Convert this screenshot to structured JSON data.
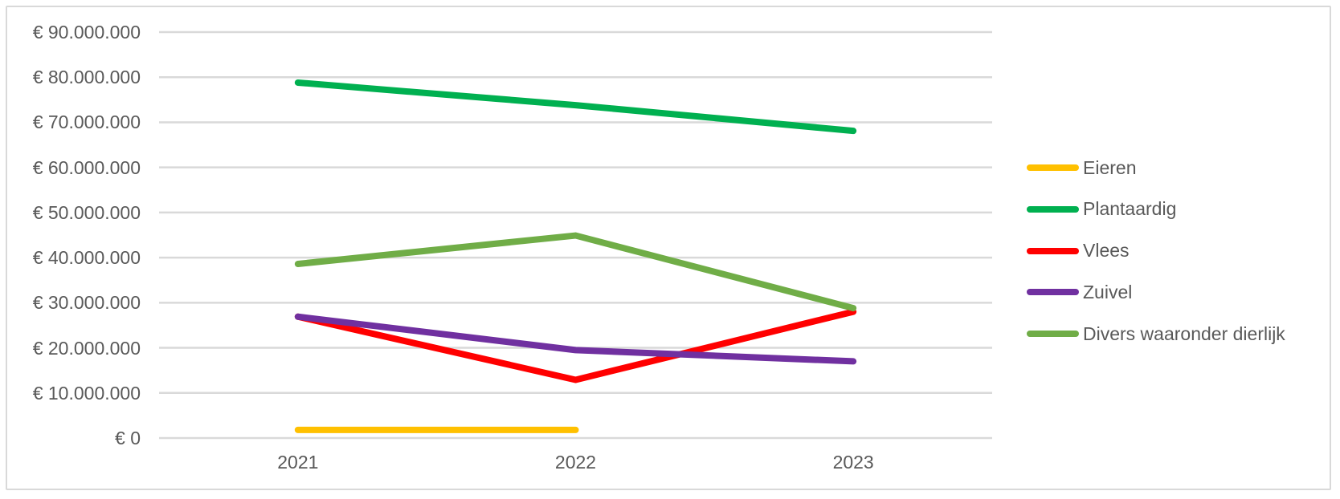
{
  "chart_data": {
    "type": "line",
    "title": "",
    "xlabel": "",
    "ylabel": "",
    "categories": [
      "2021",
      "2022",
      "2023"
    ],
    "series": [
      {
        "name": "Eieren",
        "color": "#FFC000",
        "values": [
          1800000,
          1800000,
          null
        ]
      },
      {
        "name": "Plantaardig",
        "color": "#00B050",
        "values": [
          78800000,
          73800000,
          68100000
        ]
      },
      {
        "name": "Vlees",
        "color": "#FF0000",
        "values": [
          26900000,
          12900000,
          28000000
        ]
      },
      {
        "name": "Zuivel",
        "color": "#7030A0",
        "values": [
          26900000,
          19500000,
          17000000
        ]
      },
      {
        "name": "Divers waaronder dierlijk",
        "color": "#70AD47",
        "values": [
          38600000,
          44900000,
          28800000
        ]
      }
    ],
    "y_axis": {
      "min": 0,
      "max": 90000000,
      "step": 10000000,
      "tick_labels": [
        "€ 0",
        "€ 10.000.000",
        "€ 20.000.000",
        "€ 30.000.000",
        "€ 40.000.000",
        "€ 50.000.000",
        "€ 60.000.000",
        "€ 70.000.000",
        "€ 80.000.000",
        "€ 90.000.000"
      ]
    },
    "legend_position": "right",
    "gridlines": "horizontal",
    "colors": {
      "gridline": "#D9D9D9",
      "axis_text": "#595959",
      "frame_border": "#D9D9D9",
      "background": "#FFFFFF"
    }
  }
}
